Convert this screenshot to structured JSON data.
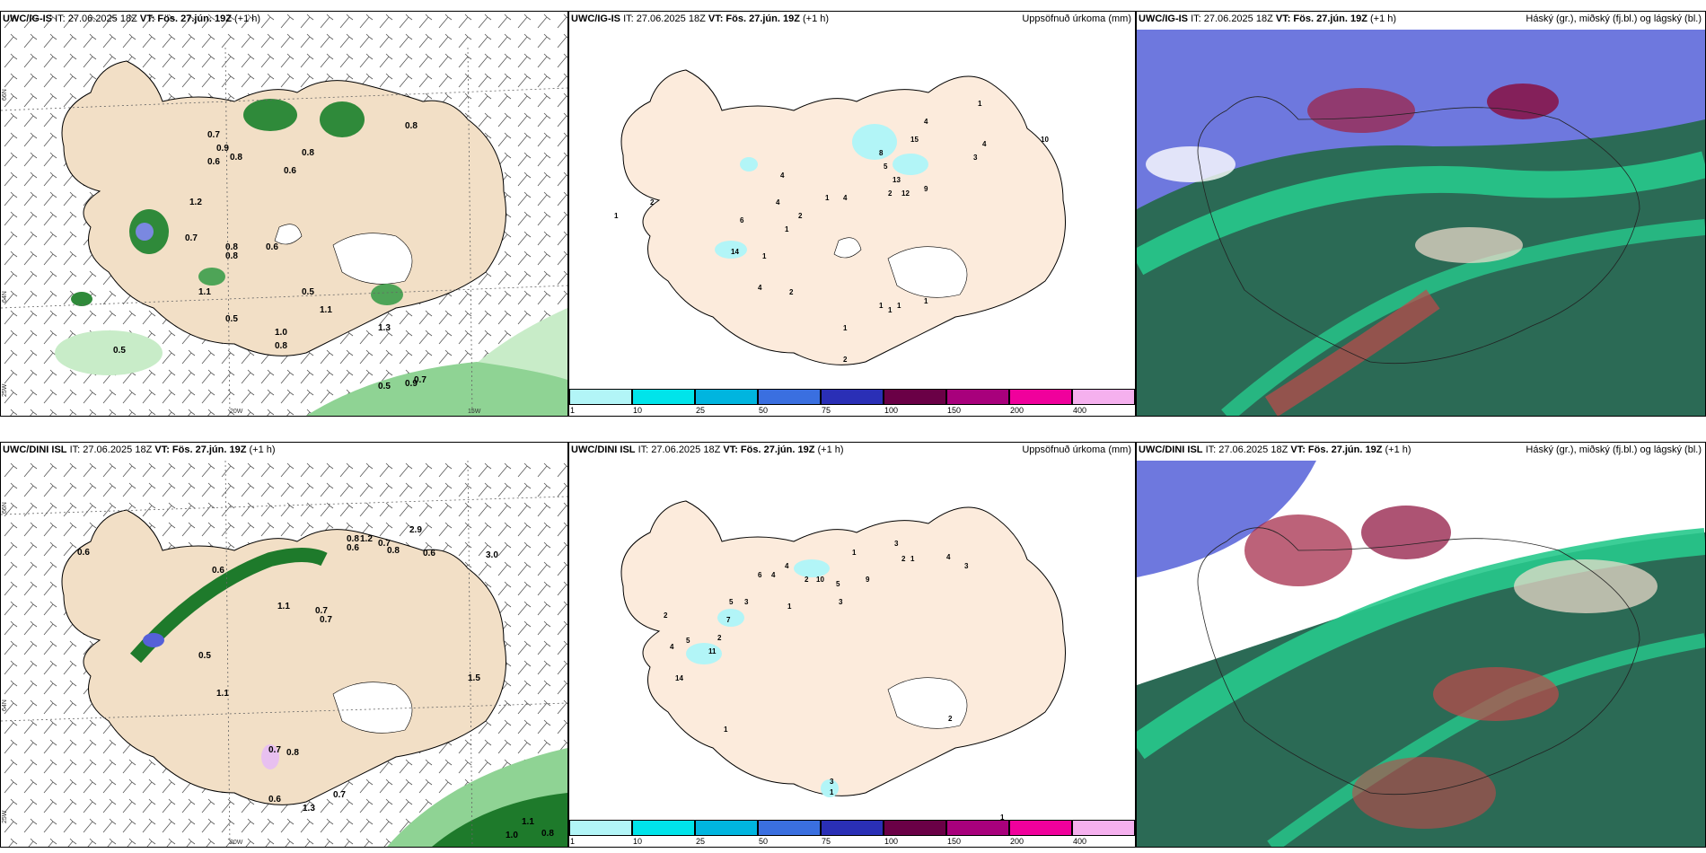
{
  "top": {
    "p1": {
      "model": "UWC/IG-IS",
      "init": "IT: 27.06.2025 18Z",
      "vt": "VT: Fös. 27.jún. 19Z",
      "lead": "(+1 h)"
    },
    "p2": {
      "model": "UWC/IG-IS",
      "init": "IT: 27.06.2025 18Z",
      "vt": "VT: Fös. 27.jún. 19Z",
      "lead": "(+1 h)",
      "right": "Uppsöfnuð úrkoma (mm)"
    },
    "p3": {
      "model": "UWC/IG-IS",
      "init": "IT: 27.06.2025 18Z",
      "vt": "VT: Fös. 27.jún. 19Z",
      "lead": "(+1 h)",
      "right": "Háský (gr.), miðský (fj.bl.) og lágský (bl.)"
    }
  },
  "bottom": {
    "p1": {
      "model": "UWC/DINI ISL",
      "init": "IT: 27.06.2025 18Z",
      "vt": "VT: Fös. 27.jún. 19Z",
      "lead": "(+1 h)"
    },
    "p2": {
      "model": "UWC/DINI ISL",
      "init": "IT: 27.06.2025 18Z",
      "vt": "VT: Fös. 27.jún. 19Z",
      "lead": "(+1 h)",
      "right": "Uppsöfnuð úrkoma (mm)"
    },
    "p3": {
      "model": "UWC/DINI ISL",
      "init": "IT: 27.06.2025 18Z",
      "vt": "VT: Fös. 27.jún. 19Z",
      "lead": "(+1 h)",
      "right": "Háský (gr.), miðský (fj.bl.) og lágský (bl.)"
    }
  },
  "legend": {
    "labels": [
      "1",
      "10",
      "25",
      "50",
      "75",
      "100",
      "150",
      "200",
      "400"
    ],
    "colors": [
      "#b2f5f7",
      "#00e4ea",
      "#00b5df",
      "#3a6fe0",
      "#2a2fb6",
      "#6a0046",
      "#a8007c",
      "#f0009c",
      "#f5b0ee"
    ]
  },
  "grid_labels": {
    "lat66": "66N",
    "lat64": "64N",
    "lat25": "25W",
    "lon20": "20W",
    "lon15": "15W",
    "lat65": "N.65"
  },
  "precip_top": [
    "1",
    "2",
    "14",
    "6",
    "4",
    "4",
    "1",
    "2",
    "4",
    "1",
    "2",
    "1",
    "4",
    "15",
    "8",
    "5",
    "13",
    "2",
    "12",
    "9",
    "4",
    "3",
    "4",
    "10",
    "1",
    "1",
    "1",
    "1",
    "1",
    "1",
    "2"
  ],
  "precip_bottom": [
    "2",
    "4",
    "14",
    "5",
    "11",
    "2",
    "7",
    "5",
    "3",
    "6",
    "4",
    "4",
    "1",
    "2",
    "10",
    "5",
    "3",
    "9",
    "1",
    "3",
    "2",
    "1",
    "4",
    "3",
    "1",
    "2",
    "3",
    "1",
    "1"
  ],
  "wind_top": [
    "0.7",
    "0.9",
    "0.8",
    "0.6",
    "0.8",
    "0.6",
    "0.8",
    "0.7",
    "0.8",
    "0.6",
    "0.8",
    "0.5",
    "1.1",
    "1.1",
    "0.5",
    "1.0",
    "0.8",
    "0.9",
    "0.7",
    "1.3",
    "0.5",
    "0.5",
    "1.2"
  ],
  "wind_bottom": [
    "0.6",
    "0.6",
    "0.7",
    "0.8",
    "0.6",
    "1.2",
    "0.7",
    "0.8",
    "1.1",
    "0.7",
    "0.5",
    "1.1",
    "0.7",
    "0.8",
    "0.6",
    "0.7",
    "1.0",
    "0.8",
    "0.6",
    "1.3",
    "2.9",
    "3.0",
    "1.5",
    "1.1"
  ],
  "colors": {
    "land": "#f7e6d2",
    "land_blank": "#fef3e8",
    "green_light": "#c8ecc8",
    "green_mid": "#7fcf85",
    "green_dark": "#1e7a2b",
    "cloud_high": "#27c98c",
    "cloud_mid": "#5560d8",
    "cloud_low": "#2b6a55",
    "cloud_red": "#b84050"
  }
}
